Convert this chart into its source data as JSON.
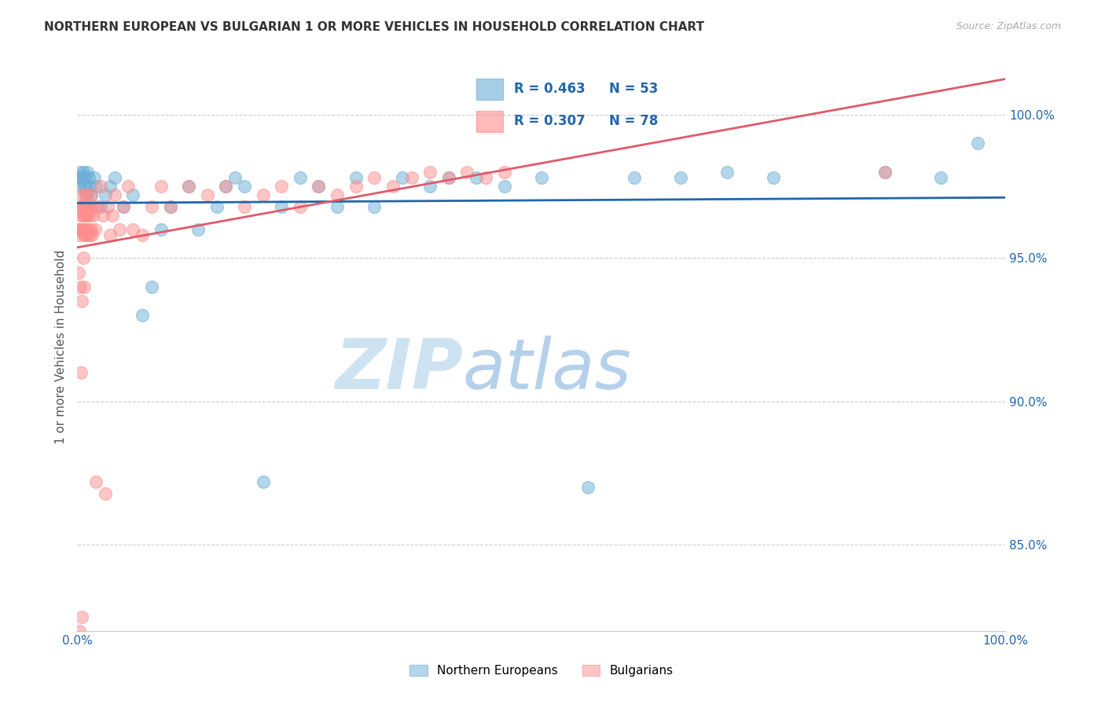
{
  "title": "NORTHERN EUROPEAN VS BULGARIAN 1 OR MORE VEHICLES IN HOUSEHOLD CORRELATION CHART",
  "source": "Source: ZipAtlas.com",
  "ylabel": "1 or more Vehicles in Household",
  "ytick_labels": [
    "85.0%",
    "90.0%",
    "95.0%",
    "100.0%"
  ],
  "ytick_values": [
    0.85,
    0.9,
    0.95,
    1.0
  ],
  "legend_ne": "Northern Europeans",
  "legend_bg": "Bulgarians",
  "R_ne": 0.463,
  "N_ne": 53,
  "R_bg": 0.307,
  "N_bg": 78,
  "color_ne": "#6baed6",
  "color_bg": "#fc8d8d",
  "line_color_ne": "#2166ac",
  "line_color_bg": "#e05a6a",
  "watermark_zip": "ZIP",
  "watermark_atlas": "atlas",
  "background_color": "#ffffff",
  "ne_x": [
    0.001,
    0.002,
    0.003,
    0.004,
    0.005,
    0.006,
    0.007,
    0.008,
    0.009,
    0.01,
    0.011,
    0.012,
    0.013,
    0.015,
    0.018,
    0.02,
    0.025,
    0.03,
    0.035,
    0.04,
    0.05,
    0.06,
    0.07,
    0.08,
    0.09,
    0.1,
    0.12,
    0.13,
    0.15,
    0.16,
    0.17,
    0.18,
    0.2,
    0.22,
    0.24,
    0.26,
    0.28,
    0.3,
    0.32,
    0.35,
    0.38,
    0.4,
    0.43,
    0.46,
    0.5,
    0.55,
    0.6,
    0.65,
    0.7,
    0.75,
    0.87,
    0.93,
    0.97
  ],
  "ne_y": [
    0.978,
    0.975,
    0.98,
    0.978,
    0.978,
    0.98,
    0.975,
    0.978,
    0.975,
    0.972,
    0.98,
    0.978,
    0.975,
    0.972,
    0.978,
    0.975,
    0.968,
    0.972,
    0.975,
    0.978,
    0.968,
    0.972,
    0.93,
    0.94,
    0.96,
    0.968,
    0.975,
    0.96,
    0.968,
    0.975,
    0.978,
    0.975,
    0.872,
    0.968,
    0.978,
    0.975,
    0.968,
    0.978,
    0.968,
    0.978,
    0.975,
    0.978,
    0.978,
    0.975,
    0.978,
    0.87,
    0.978,
    0.978,
    0.98,
    0.978,
    0.98,
    0.978,
    0.99
  ],
  "bg_x": [
    0.001,
    0.001,
    0.002,
    0.002,
    0.002,
    0.003,
    0.003,
    0.003,
    0.004,
    0.004,
    0.004,
    0.005,
    0.005,
    0.005,
    0.006,
    0.006,
    0.006,
    0.007,
    0.007,
    0.007,
    0.008,
    0.008,
    0.008,
    0.009,
    0.009,
    0.01,
    0.01,
    0.01,
    0.011,
    0.011,
    0.012,
    0.012,
    0.013,
    0.013,
    0.014,
    0.015,
    0.015,
    0.016,
    0.017,
    0.018,
    0.019,
    0.02,
    0.022,
    0.025,
    0.028,
    0.03,
    0.033,
    0.035,
    0.038,
    0.04,
    0.045,
    0.05,
    0.055,
    0.06,
    0.07,
    0.08,
    0.09,
    0.1,
    0.12,
    0.14,
    0.16,
    0.18,
    0.2,
    0.22,
    0.24,
    0.26,
    0.28,
    0.3,
    0.32,
    0.34,
    0.36,
    0.38,
    0.4,
    0.42,
    0.44,
    0.46,
    0.87,
    0.005
  ],
  "bg_y": [
    0.96,
    0.945,
    0.968,
    0.96,
    0.82,
    0.965,
    0.958,
    0.94,
    0.968,
    0.96,
    0.91,
    0.972,
    0.96,
    0.935,
    0.965,
    0.95,
    0.968,
    0.958,
    0.94,
    0.965,
    0.972,
    0.96,
    0.968,
    0.958,
    0.965,
    0.968,
    0.96,
    0.972,
    0.958,
    0.965,
    0.968,
    0.96,
    0.965,
    0.958,
    0.968,
    0.972,
    0.96,
    0.958,
    0.965,
    0.968,
    0.96,
    0.872,
    0.968,
    0.975,
    0.965,
    0.868,
    0.968,
    0.958,
    0.965,
    0.972,
    0.96,
    0.968,
    0.975,
    0.96,
    0.958,
    0.968,
    0.975,
    0.968,
    0.975,
    0.972,
    0.975,
    0.968,
    0.972,
    0.975,
    0.968,
    0.975,
    0.972,
    0.975,
    0.978,
    0.975,
    0.978,
    0.98,
    0.978,
    0.98,
    0.978,
    0.98,
    0.98,
    0.825
  ]
}
